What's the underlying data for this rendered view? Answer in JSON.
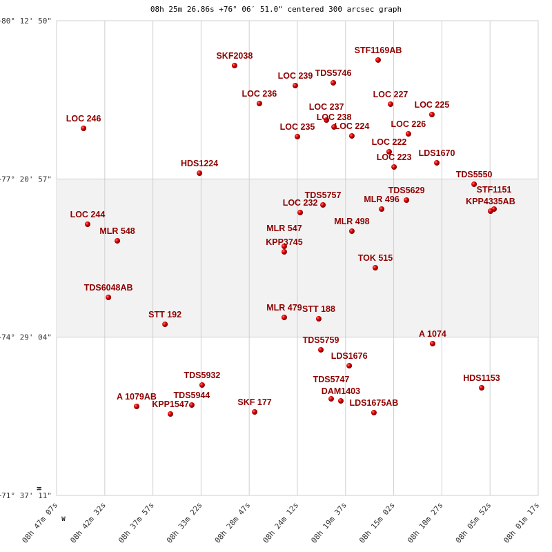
{
  "chart_data": {
    "type": "scatter",
    "title": "08h 25m 26.86s +76° 06′ 51.0\" centered 300 arcsec graph",
    "x_ticks": [
      "08h 47m 07s",
      "08h 42m 32s",
      "08h 37m 57s",
      "08h 33m 22s",
      "08h 28m 47s",
      "08h 24m 12s",
      "08h 19m 37s",
      "08h 15m 02s",
      "08h 10m 27s",
      "08h 05m 52s",
      "08h 01m 17s"
    ],
    "y_ticks": [
      "+80° 12' 50\"",
      "+77° 20' 57\"",
      "+74° 29' 04\"",
      "+71° 37' 11\""
    ],
    "x_range": [
      [
        8,
        47,
        7
      ],
      [
        8,
        1,
        17
      ]
    ],
    "y_range": [
      [
        80,
        12,
        50
      ],
      [
        71,
        37,
        11
      ]
    ],
    "x_direction": "RA decreasing to the right",
    "grid": true,
    "direction_markers": {
      "north": "N",
      "west": "W"
    },
    "colors": {
      "point": "#cc0000",
      "label": "#8f0000",
      "band": "#f2f2f2",
      "grid": "#cfcfcf"
    },
    "points": [
      {
        "name": "SKF2038",
        "ra": [
          8,
          30,
          11
        ],
        "dec": [
          79,
          24,
          7
        ]
      },
      {
        "name": "STF1169AB",
        "ra": [
          8,
          16,
          31
        ],
        "dec": [
          79,
          30,
          7
        ]
      },
      {
        "name": "LOC 239",
        "ra": [
          8,
          24,
          24
        ],
        "dec": [
          79,
          2,
          23
        ]
      },
      {
        "name": "TDS5746",
        "ra": [
          8,
          20,
          47
        ],
        "dec": [
          79,
          5,
          23
        ]
      },
      {
        "name": "LOC 236",
        "ra": [
          8,
          27,
          49
        ],
        "dec": [
          78,
          42,
          54
        ]
      },
      {
        "name": "LOC 227",
        "ra": [
          8,
          15,
          20
        ],
        "dec": [
          78,
          42,
          9
        ]
      },
      {
        "name": "LOC 225",
        "ra": [
          8,
          11,
          24
        ],
        "dec": [
          78,
          30,
          54
        ]
      },
      {
        "name": "LOC 246",
        "ra": [
          8,
          44,
          33
        ],
        "dec": [
          78,
          15,
          55
        ]
      },
      {
        "name": "LOC 237",
        "ra": [
          8,
          21,
          26
        ],
        "dec": [
          78,
          24,
          54
        ]
      },
      {
        "name": "LOC 238",
        "ra": [
          8,
          20,
          43
        ],
        "dec": [
          78,
          17,
          25
        ]
      },
      {
        "name": "LOC 224",
        "ra": [
          8,
          19,
          1
        ],
        "dec": [
          78,
          7,
          40
        ]
      },
      {
        "name": "LOC 235",
        "ra": [
          8,
          24,
          12
        ],
        "dec": [
          78,
          6,
          55
        ]
      },
      {
        "name": "LOC 226",
        "ra": [
          8,
          13,
          38
        ],
        "dec": [
          78,
          9,
          55
        ]
      },
      {
        "name": "LOC 222",
        "ra": [
          8,
          15,
          28
        ],
        "dec": [
          77,
          50,
          26
        ]
      },
      {
        "name": "LOC 223",
        "ra": [
          8,
          15,
          0
        ],
        "dec": [
          77,
          33,
          56
        ]
      },
      {
        "name": "LDS1670",
        "ra": [
          8,
          10,
          56
        ],
        "dec": [
          77,
          38,
          26
        ]
      },
      {
        "name": "HDS1224",
        "ra": [
          8,
          33,
          31
        ],
        "dec": [
          77,
          27,
          12
        ]
      },
      {
        "name": "TDS5550",
        "ra": [
          8,
          7,
          23
        ],
        "dec": [
          77,
          15,
          12
        ]
      },
      {
        "name": "TDS5629",
        "ra": [
          8,
          13,
          49
        ],
        "dec": [
          76,
          57,
          58
        ]
      },
      {
        "name": "TDS5757",
        "ra": [
          8,
          21,
          46
        ],
        "dec": [
          76,
          52,
          43
        ]
      },
      {
        "name": "MLR 496",
        "ra": [
          8,
          16,
          11
        ],
        "dec": [
          76,
          48,
          13
        ]
      },
      {
        "name": "LOC 232",
        "ra": [
          8,
          23,
          56
        ],
        "dec": [
          76,
          44,
          28
        ]
      },
      {
        "name": "STF1151",
        "ra": [
          8,
          5,
          29
        ],
        "dec": [
          76,
          48,
          13
        ]
      },
      {
        "name": "KPP4335AB",
        "ra": [
          8,
          5,
          49
        ],
        "dec": [
          76,
          45,
          58
        ]
      },
      {
        "name": "LOC 244",
        "ra": [
          8,
          44,
          10
        ],
        "dec": [
          76,
          31,
          44
        ]
      },
      {
        "name": "MLR 498",
        "ra": [
          8,
          19,
          1
        ],
        "dec": [
          76,
          24,
          14
        ]
      },
      {
        "name": "MLR 548",
        "ra": [
          8,
          41,
          20
        ],
        "dec": [
          76,
          13,
          45
        ]
      },
      {
        "name": "MLR 547",
        "ra": [
          8,
          25,
          27
        ],
        "dec": [
          76,
          7,
          45
        ]
      },
      {
        "name": "KPP3745",
        "ra": [
          8,
          25,
          27
        ],
        "dec": [
          76,
          1,
          45
        ]
      },
      {
        "name": "TOK 515",
        "ra": [
          8,
          16,
          47
        ],
        "dec": [
          75,
          44,
          31
        ]
      },
      {
        "name": "TDS6048AB",
        "ra": [
          8,
          42,
          11
        ],
        "dec": [
          75,
          12,
          17
        ]
      },
      {
        "name": "MLR 479",
        "ra": [
          8,
          25,
          27
        ],
        "dec": [
          74,
          50,
          33
        ]
      },
      {
        "name": "STT 188",
        "ra": [
          8,
          22,
          10
        ],
        "dec": [
          74,
          49,
          3
        ]
      },
      {
        "name": "STT 192",
        "ra": [
          8,
          36,
          48
        ],
        "dec": [
          74,
          43,
          3
        ]
      },
      {
        "name": "A  1074",
        "ra": [
          8,
          11,
          20
        ],
        "dec": [
          74,
          22,
          4
        ]
      },
      {
        "name": "TDS5759",
        "ra": [
          8,
          21,
          58
        ],
        "dec": [
          74,
          15,
          19
        ]
      },
      {
        "name": "LDS1676",
        "ra": [
          8,
          19,
          16
        ],
        "dec": [
          73,
          58,
          5
        ]
      },
      {
        "name": "TDS5932",
        "ra": [
          8,
          33,
          16
        ],
        "dec": [
          73,
          37,
          6
        ]
      },
      {
        "name": "HDS1153",
        "ra": [
          8,
          6,
          40
        ],
        "dec": [
          73,
          34,
          6
        ]
      },
      {
        "name": "TDS5747",
        "ra": [
          8,
          20,
          59
        ],
        "dec": [
          73,
          22,
          6
        ]
      },
      {
        "name": "DAM1403",
        "ra": [
          8,
          20,
          4
        ],
        "dec": [
          73,
          19,
          52
        ]
      },
      {
        "name": "A  1079AB",
        "ra": [
          8,
          39,
          30
        ],
        "dec": [
          73,
          13,
          52
        ]
      },
      {
        "name": "TDS5944",
        "ra": [
          8,
          34,
          15
        ],
        "dec": [
          73,
          15,
          22
        ]
      },
      {
        "name": "KPP1547",
        "ra": [
          8,
          36,
          17
        ],
        "dec": [
          73,
          5,
          37
        ]
      },
      {
        "name": "SKF 177",
        "ra": [
          8,
          28,
          16
        ],
        "dec": [
          73,
          7,
          52
        ]
      },
      {
        "name": "LDS1675AB",
        "ra": [
          8,
          16,
          55
        ],
        "dec": [
          73,
          7,
          7
        ]
      }
    ]
  }
}
